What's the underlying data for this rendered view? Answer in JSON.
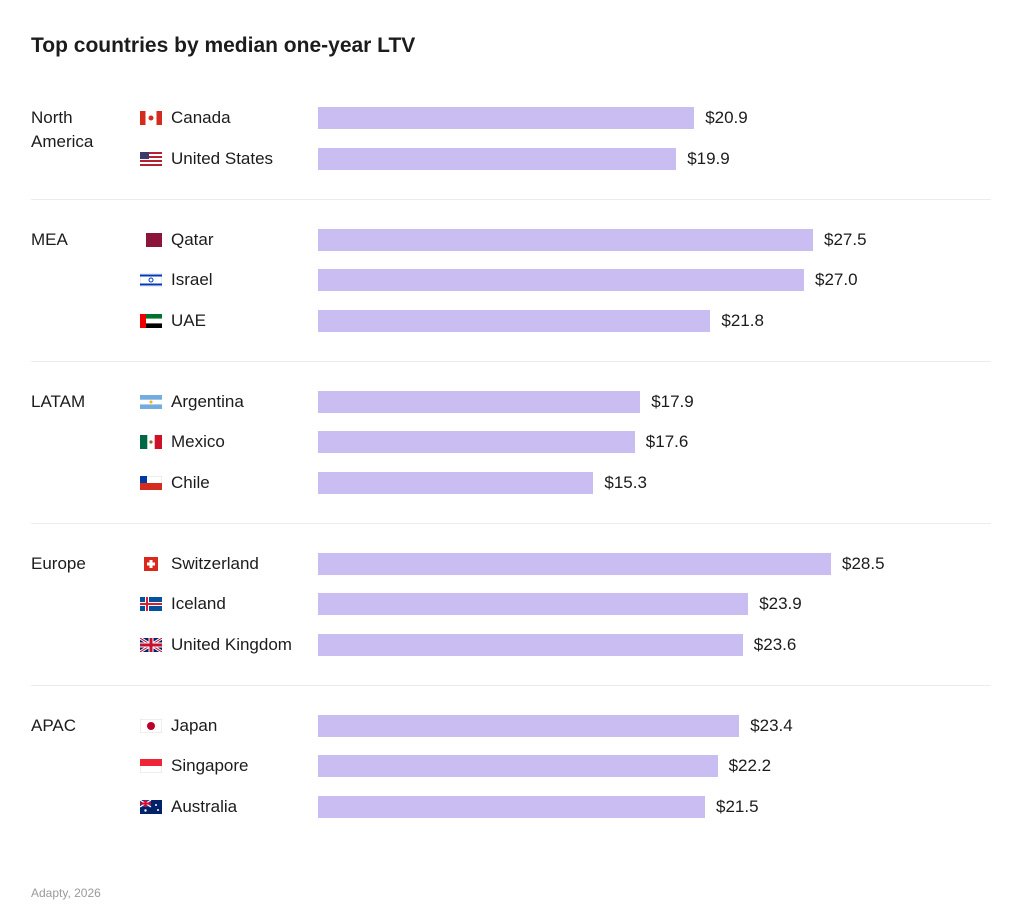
{
  "chart_data": {
    "type": "bar",
    "title": "Top countries by median one-year LTV",
    "color": "#c9bdf2",
    "groups": [
      {
        "name": "North America",
        "categories": [
          "Canada",
          "United States"
        ],
        "values": [
          20.9,
          19.9
        ],
        "value_labels": [
          "$20.9",
          "$19.9"
        ]
      },
      {
        "name": "MEA",
        "categories": [
          "Qatar",
          "Israel",
          "UAE"
        ],
        "values": [
          27.5,
          27.0,
          21.8
        ],
        "value_labels": [
          "$27.5",
          "$27.0",
          "$21.8"
        ]
      },
      {
        "name": "LATAM",
        "categories": [
          "Argentina",
          "Mexico",
          "Chile"
        ],
        "values": [
          17.9,
          17.6,
          15.3
        ],
        "value_labels": [
          "$17.9",
          "$17.6",
          "$15.3"
        ]
      },
      {
        "name": "Europe",
        "categories": [
          "Switzerland",
          "Iceland",
          "United Kingdom"
        ],
        "values": [
          28.5,
          23.9,
          23.6
        ],
        "value_labels": [
          "$28.5",
          "$23.9",
          "$23.6"
        ]
      },
      {
        "name": "APAC",
        "categories": [
          "Japan",
          "Singapore",
          "Australia"
        ],
        "values": [
          23.4,
          22.2,
          21.5
        ],
        "value_labels": [
          "$23.4",
          "$22.2",
          "$21.5"
        ]
      }
    ]
  },
  "footer": "Adapty, 2026"
}
